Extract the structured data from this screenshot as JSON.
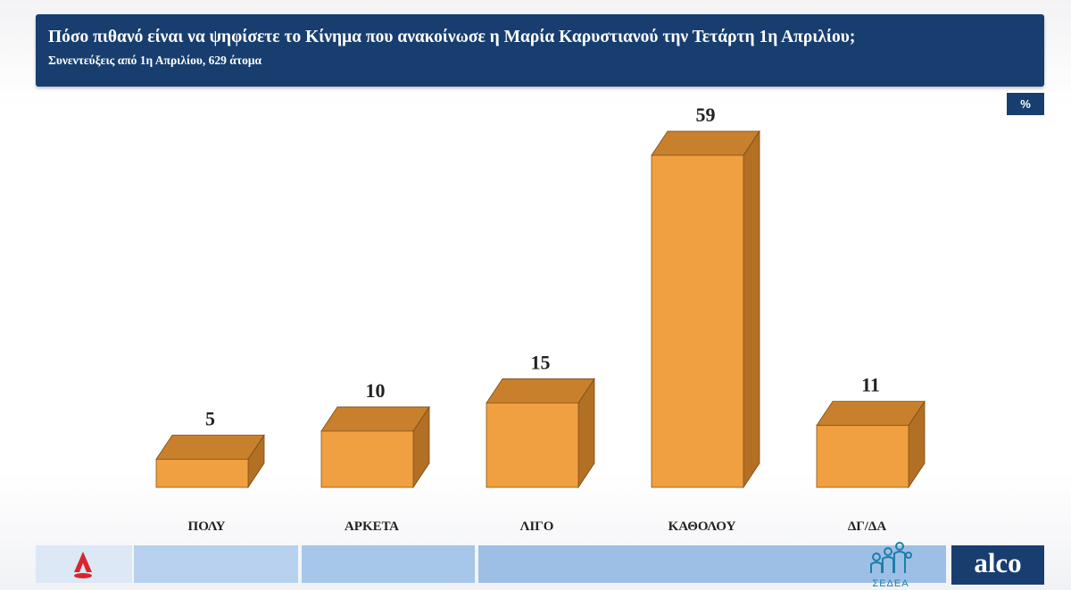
{
  "header": {
    "title": "Πόσο πιθανό είναι να ψηφίσετε το Κίνημα που ανακοίνωσε η Μαρία Καρυστιανού την Τετάρτη 1η Απριλίου;",
    "subtitle": "Συνεντεύξεις από 1η Απριλίου, 629 άτομα"
  },
  "unit_badge": "%",
  "chart_data": {
    "type": "bar",
    "categories": [
      "ΠΟΛΥ",
      "ΑΡΚΕΤΑ",
      "ΛΙΓΟ",
      "ΚΑΘΟΛΟΥ",
      "ΔΓ/ΔΑ"
    ],
    "values": [
      5,
      10,
      15,
      59,
      11
    ],
    "title": "Πόσο πιθανό είναι να ψηφίσετε το Κίνημα που ανακοίνωσε η Μαρία Καρυστιανού την Τετάρτη 1η Απριλίου;",
    "subtitle": "Συνεντεύξεις από 1η Απριλίου, 629 άτομα",
    "unit": "%",
    "ylim": [
      0,
      59
    ],
    "grid": false,
    "legend": "none",
    "bar_color": "#f0a040"
  },
  "footer": {
    "strip_colors": [
      "#dce8f6",
      "#b7d1ee",
      "#a6c6ea",
      "#9dbfe6"
    ],
    "logo_sedea_text": "ΣΕΔΕΑ",
    "logo_alco_text": "alco"
  },
  "colors": {
    "header_bg": "#173e6f",
    "bar_front": "#f0a040",
    "bar_top": "#c8802c",
    "bar_side": "#b27024"
  }
}
